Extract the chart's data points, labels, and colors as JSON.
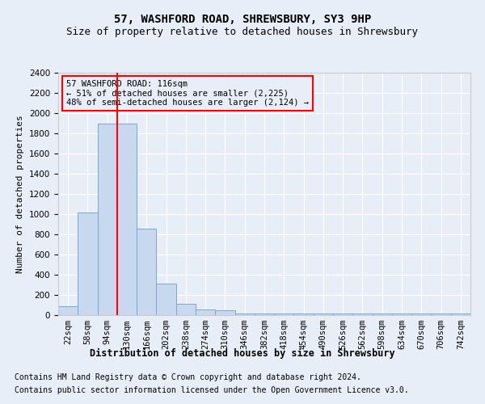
{
  "title": "57, WASHFORD ROAD, SHREWSBURY, SY3 9HP",
  "subtitle": "Size of property relative to detached houses in Shrewsbury",
  "xlabel": "Distribution of detached houses by size in Shrewsbury",
  "ylabel": "Number of detached properties",
  "annotation_line1": "57 WASHFORD ROAD: 116sqm",
  "annotation_line2": "← 51% of detached houses are smaller (2,225)",
  "annotation_line3": "48% of semi-detached houses are larger (2,124) →",
  "footer1": "Contains HM Land Registry data © Crown copyright and database right 2024.",
  "footer2": "Contains public sector information licensed under the Open Government Licence v3.0.",
  "bin_labels": [
    "22sqm",
    "58sqm",
    "94sqm",
    "130sqm",
    "166sqm",
    "202sqm",
    "238sqm",
    "274sqm",
    "310sqm",
    "346sqm",
    "382sqm",
    "418sqm",
    "454sqm",
    "490sqm",
    "526sqm",
    "562sqm",
    "598sqm",
    "634sqm",
    "670sqm",
    "706sqm",
    "742sqm"
  ],
  "bar_values": [
    90,
    1020,
    1900,
    1900,
    860,
    310,
    115,
    60,
    45,
    20,
    20,
    20,
    20,
    20,
    20,
    20,
    20,
    20,
    20,
    20,
    20
  ],
  "bar_color": "#c8d8ee",
  "bar_edge_color": "#7aa8cc",
  "red_line_index": 3,
  "ylim": [
    0,
    2400
  ],
  "yticks": [
    0,
    200,
    400,
    600,
    800,
    1000,
    1200,
    1400,
    1600,
    1800,
    2000,
    2200,
    2400
  ],
  "title_fontsize": 10,
  "subtitle_fontsize": 9,
  "xlabel_fontsize": 8.5,
  "ylabel_fontsize": 8,
  "tick_fontsize": 7.5,
  "annotation_fontsize": 7.5,
  "footer_fontsize": 7,
  "background_color": "#e8eef8",
  "plot_bg_color": "#e8eef8",
  "grid_color": "#ffffff"
}
